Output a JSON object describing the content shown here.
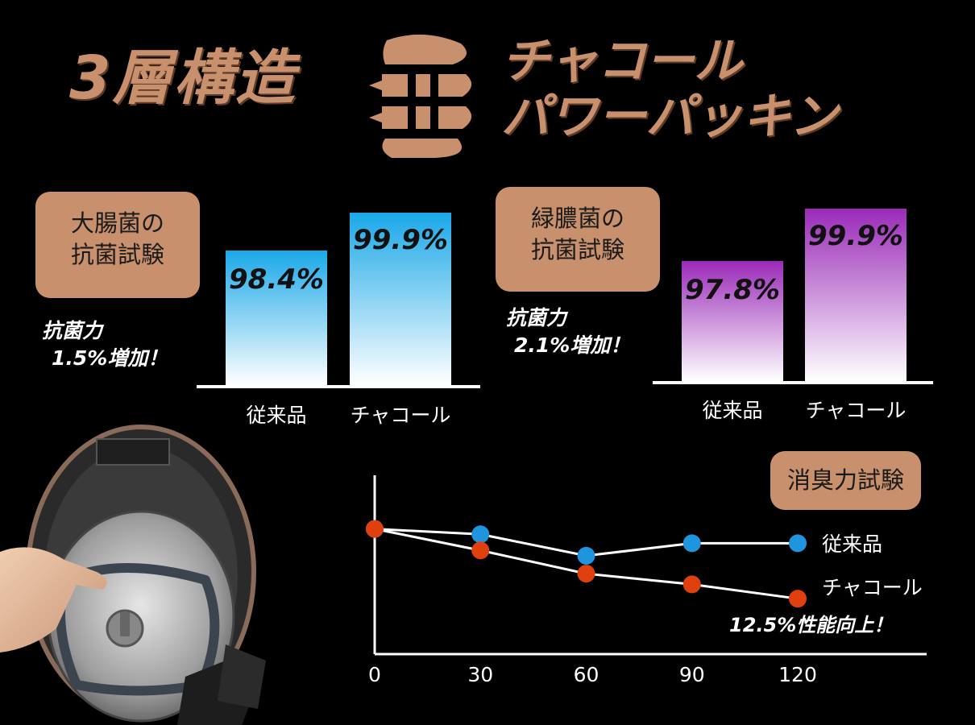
{
  "title": {
    "main": "3層構造",
    "right_line1": "チャコール",
    "right_line2": "パワーパッキン"
  },
  "colors": {
    "accent": "#c8906c",
    "blue_top": "#1aa8e8",
    "purple_top": "#9a2ab8",
    "blue_dot": "#1f95e0",
    "red_dot": "#e0400e"
  },
  "panel_left": {
    "tag_line1": "大腸菌の",
    "tag_line2": "抗菌試験",
    "note_line1": "抗菌力",
    "note_line2": "1.5%増加！"
  },
  "panel_right": {
    "tag_line1": "緑膿菌の",
    "tag_line2": "抗菌試験",
    "note_line1": "抗菌力",
    "note_line2": "2.1%増加！"
  },
  "panel_line": {
    "tag": "消臭力試験",
    "note": "12.5%性能向上！"
  },
  "chart_data": [
    {
      "type": "bar",
      "title": "大腸菌の抗菌試験",
      "categories": [
        "従来品",
        "チャコール"
      ],
      "values": [
        98.4,
        99.9
      ],
      "labels": [
        "98.4%",
        "99.9%"
      ]
    },
    {
      "type": "bar",
      "title": "緑膿菌の抗菌試験",
      "categories": [
        "従来品",
        "チャコール"
      ],
      "values": [
        97.8,
        99.9
      ],
      "labels": [
        "97.8%",
        "99.9%"
      ]
    },
    {
      "type": "line",
      "title": "消臭力試験",
      "x": [
        0,
        30,
        60,
        90,
        120
      ],
      "x_tick_labels": [
        "0",
        "30",
        "60",
        "90",
        "120"
      ],
      "series": [
        {
          "name": "従来品",
          "values": [
            100,
            99.7,
            98.5,
            99.2,
            99.2
          ]
        },
        {
          "name": "チャコール",
          "values": [
            100,
            98.8,
            97.5,
            96.9,
            96.1
          ]
        }
      ],
      "ylim": [
        93,
        103
      ]
    }
  ]
}
